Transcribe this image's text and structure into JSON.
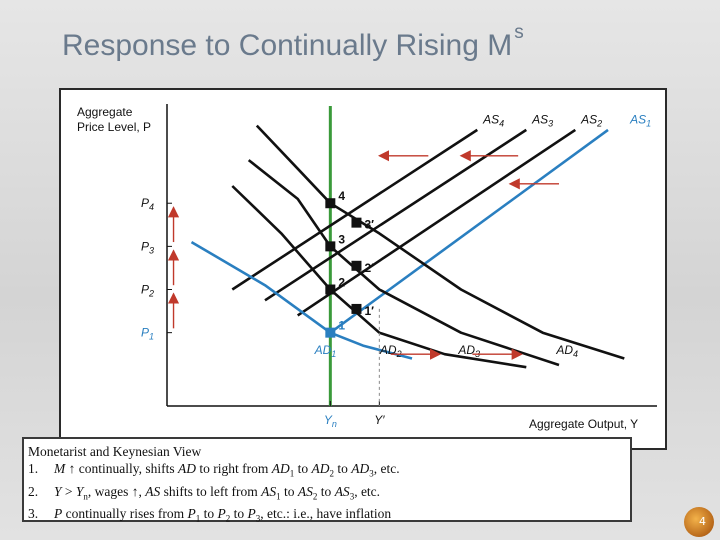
{
  "slide": {
    "title_main": "Response to Continually Rising M",
    "title_sup": "s",
    "page_number": "4"
  },
  "notes": {
    "heading": "Monetarist and Keynesian View",
    "line1": {
      "num": "1.",
      "a": "M",
      "b": " continually, shifts ",
      "c": "AD",
      "d": " to right from ",
      "e": "AD",
      "e_sub": "1",
      "f": " to ",
      "g": "AD",
      "g_sub": "2",
      "h": " to ",
      "i": "AD",
      "i_sub": "3",
      "j": ", etc."
    },
    "line2": {
      "num": "2.",
      "a": "Y",
      "b": " > ",
      "c": "Y",
      "c_sub": "n",
      "d": ", wages ",
      "e": ", ",
      "f": "AS",
      "g": " shifts to left from ",
      "h": "AS",
      "h_sub": "1",
      "i": " to ",
      "j": "AS",
      "j_sub": "2",
      "k": " to ",
      "l": "AS",
      "l_sub": "3",
      "m": ", etc."
    },
    "line3": {
      "num": "3.",
      "a": "P",
      "b": " continually rises from ",
      "c": "P",
      "c_sub": "1",
      "d": " to ",
      "e": "P",
      "e_sub": "2",
      "f": " to ",
      "g": "P",
      "g_sub": "3",
      "h": ", etc.: i.e., have inflation"
    }
  },
  "chart_data": {
    "type": "line",
    "ylabel": "Aggregate Price Level, P",
    "ylabel_lines": [
      "Aggregate",
      "Price Level, P"
    ],
    "xlabel": "Aggregate Output, Y",
    "x_ticks": [
      {
        "label": "Y",
        "sub": "n",
        "x": 10,
        "color": "#2a7fc0"
      },
      {
        "label": "Y′",
        "sub": "",
        "x": 13,
        "color": "#111111"
      }
    ],
    "y_ticks": [
      {
        "label": "P",
        "sub": "1",
        "y": 1,
        "color": "#2a7fc0"
      },
      {
        "label": "P",
        "sub": "2",
        "y": 2,
        "color": "#111111"
      },
      {
        "label": "P",
        "sub": "3",
        "y": 3,
        "color": "#111111"
      },
      {
        "label": "P",
        "sub": "4",
        "y": 4,
        "color": "#111111"
      }
    ],
    "xlim": [
      0,
      30
    ],
    "ylim": [
      -0.7,
      6.3
    ],
    "colors": {
      "blue": "#2a7fc0",
      "green": "#3a9a3a",
      "black": "#111111",
      "red": "#c0392b"
    },
    "vertical_line": {
      "name": "Y_n",
      "x": 10,
      "color": "#3a9a3a"
    },
    "series": [
      {
        "name": "AS",
        "sub": "1",
        "color": "#2a7fc0",
        "points": [
          [
            10,
            1
          ],
          [
            27,
            5.7
          ]
        ]
      },
      {
        "name": "AS",
        "sub": "2",
        "color": "#111111",
        "points": [
          [
            8,
            1.4
          ],
          [
            25,
            5.7
          ]
        ]
      },
      {
        "name": "AS",
        "sub": "3",
        "color": "#111111",
        "points": [
          [
            6,
            1.75
          ],
          [
            22,
            5.7
          ]
        ]
      },
      {
        "name": "AS",
        "sub": "4",
        "color": "#111111",
        "points": [
          [
            4,
            2
          ],
          [
            19,
            5.7
          ]
        ]
      },
      {
        "name": "AD",
        "sub": "1",
        "color": "#2a7fc0",
        "points": [
          [
            1.5,
            3.1
          ],
          [
            6,
            2.1
          ],
          [
            10,
            1
          ],
          [
            12,
            0.7
          ],
          [
            15,
            0.4
          ]
        ]
      },
      {
        "name": "AD",
        "sub": "2",
        "color": "#111111",
        "points": [
          [
            4,
            4.4
          ],
          [
            7,
            3.3
          ],
          [
            10,
            2
          ],
          [
            13,
            1.0
          ],
          [
            17,
            0.5
          ],
          [
            22,
            0.2
          ]
        ]
      },
      {
        "name": "AD",
        "sub": "3",
        "color": "#111111",
        "points": [
          [
            5,
            5.0
          ],
          [
            8,
            4.1
          ],
          [
            10,
            3
          ],
          [
            13,
            2.0
          ],
          [
            18,
            1.0
          ],
          [
            24,
            0.25
          ]
        ]
      },
      {
        "name": "AD",
        "sub": "4",
        "color": "#111111",
        "points": [
          [
            5.5,
            5.8
          ],
          [
            8,
            4.8
          ],
          [
            10,
            4
          ],
          [
            13,
            3.3
          ],
          [
            18,
            2.0
          ],
          [
            23,
            1.0
          ],
          [
            28,
            0.4
          ]
        ]
      }
    ],
    "series_labels": [
      {
        "name": "AS",
        "sub": "4",
        "x": 20,
        "y": 5.85,
        "color": "#111111"
      },
      {
        "name": "AS",
        "sub": "3",
        "x": 23,
        "y": 5.85,
        "color": "#111111"
      },
      {
        "name": "AS",
        "sub": "2",
        "x": 26,
        "y": 5.85,
        "color": "#111111"
      },
      {
        "name": "AS",
        "sub": "1",
        "x": 29,
        "y": 5.85,
        "color": "#2a7fc0"
      },
      {
        "name": "AD",
        "sub": "1",
        "x": 9.7,
        "y": 0.5,
        "color": "#2a7fc0"
      },
      {
        "name": "AD",
        "sub": "2",
        "x": 13.7,
        "y": 0.5,
        "color": "#111111"
      },
      {
        "name": "AD",
        "sub": "3",
        "x": 18.5,
        "y": 0.5,
        "color": "#111111"
      },
      {
        "name": "AD",
        "sub": "4",
        "x": 24.5,
        "y": 0.5,
        "color": "#111111"
      }
    ],
    "equilibrium_points": [
      {
        "label": "1",
        "x": 10,
        "y": 1,
        "color": "#2a7fc0"
      },
      {
        "label": "1′",
        "x": 11.6,
        "y": 1.55,
        "color": "#111111"
      },
      {
        "label": "2",
        "x": 10,
        "y": 2,
        "color": "#111111"
      },
      {
        "label": "2′",
        "x": 11.6,
        "y": 2.55,
        "color": "#111111"
      },
      {
        "label": "3",
        "x": 10,
        "y": 3,
        "color": "#111111"
      },
      {
        "label": "3′",
        "x": 11.6,
        "y": 3.55,
        "color": "#111111"
      },
      {
        "label": "4",
        "x": 10,
        "y": 4,
        "color": "#111111"
      }
    ],
    "arrows": [
      {
        "type": "left",
        "x1": 16,
        "x2": 13,
        "y": 5.1,
        "color": "#c0392b"
      },
      {
        "type": "left",
        "x1": 21.5,
        "x2": 18,
        "y": 5.1,
        "color": "#c0392b"
      },
      {
        "type": "left",
        "x1": 24,
        "x2": 21,
        "y": 4.45,
        "color": "#c0392b"
      },
      {
        "type": "right",
        "x1": 13.7,
        "x2": 16.7,
        "y": 0.5,
        "color": "#c0392b"
      },
      {
        "type": "right",
        "x1": 18.7,
        "x2": 21.7,
        "y": 0.5,
        "color": "#c0392b"
      },
      {
        "type": "up",
        "x": 0.4,
        "y1": 1.1,
        "y2": 1.9,
        "color": "#c0392b"
      },
      {
        "type": "up",
        "x": 0.4,
        "y1": 2.1,
        "y2": 2.9,
        "color": "#c0392b"
      },
      {
        "type": "up",
        "x": 0.4,
        "y1": 3.1,
        "y2": 3.9,
        "color": "#c0392b"
      }
    ],
    "grid": false
  }
}
